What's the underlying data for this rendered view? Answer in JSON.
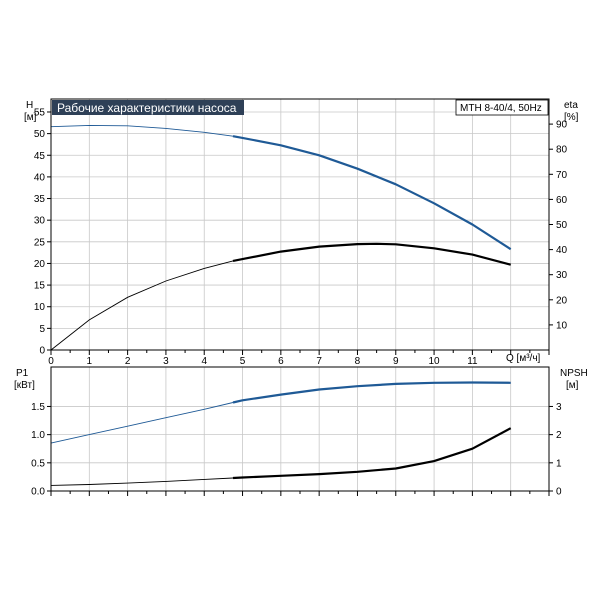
{
  "chart_data": [
    {
      "type": "line",
      "title": "Рабочие характеристики насоса",
      "model_label": "MTH 8-40/4, 50Hz",
      "xlabel": "Q [м³/ч]",
      "ylabel_left": "H",
      "ylabel_left_unit": "[м]",
      "ylabel_right": "eta",
      "ylabel_right_unit": "[%]",
      "xlim": [
        0,
        13
      ],
      "ylim_left": [
        0,
        58
      ],
      "ylim_right": [
        0,
        100
      ],
      "x_ticks": [
        "0",
        "1",
        "2",
        "3",
        "4",
        "5",
        "6",
        "7",
        "8",
        "9",
        "10",
        "11"
      ],
      "y_ticks_left": [
        "0",
        "5",
        "10",
        "15",
        "20",
        "25",
        "30",
        "35",
        "40",
        "45",
        "50",
        "55"
      ],
      "y_ticks_right": [
        "10",
        "20",
        "30",
        "40",
        "50",
        "60",
        "70",
        "80",
        "90"
      ],
      "grid": true,
      "series": [
        {
          "axis": "left",
          "color": "#1f5a96",
          "x": [
            0,
            1,
            2,
            3,
            4,
            4.75,
            5,
            6,
            7,
            8,
            9,
            10,
            11,
            12
          ],
          "y": [
            51.6,
            51.9,
            51.8,
            51.2,
            50.3,
            49.4,
            49.0,
            47.3,
            45.0,
            41.9,
            38.3,
            33.9,
            29.0,
            23.3
          ]
        },
        {
          "axis": "right",
          "color": "#000000",
          "x": [
            0,
            1,
            2,
            3,
            4,
            4.75,
            5,
            6,
            7,
            8,
            8.5,
            9,
            10,
            11,
            12
          ],
          "y": [
            0,
            12,
            21,
            27.5,
            32.5,
            35.5,
            36.2,
            39.2,
            41.2,
            42.2,
            42.3,
            42.1,
            40.5,
            38.0,
            34.0
          ]
        }
      ]
    },
    {
      "type": "line",
      "xlim": [
        0,
        13
      ],
      "ylabel_left": "P1",
      "ylabel_left_unit": "[кВт]",
      "ylabel_right": "NPSH",
      "ylabel_right_unit": "[м]",
      "ylim_left": [
        0,
        2.2
      ],
      "ylim_right": [
        0,
        4.4
      ],
      "y_ticks_left": [
        "0.0",
        "0.5",
        "1.0",
        "1.5"
      ],
      "y_ticks_right": [
        "0",
        "1",
        "2",
        "3"
      ],
      "grid": true,
      "series": [
        {
          "axis": "left",
          "color": "#1f5a96",
          "x": [
            0,
            1,
            2,
            3,
            4,
            4.75,
            5,
            6,
            7,
            8,
            9,
            10,
            11,
            12
          ],
          "y": [
            0.85,
            1.0,
            1.15,
            1.3,
            1.45,
            1.57,
            1.61,
            1.71,
            1.8,
            1.86,
            1.9,
            1.92,
            1.925,
            1.92
          ]
        },
        {
          "axis": "right",
          "color": "#000000",
          "x": [
            0,
            1,
            2,
            3,
            4,
            4.75,
            5,
            6,
            7,
            8,
            9,
            10,
            11,
            12
          ],
          "y": [
            0.2,
            0.23,
            0.28,
            0.34,
            0.41,
            0.46,
            0.48,
            0.54,
            0.6,
            0.68,
            0.8,
            1.06,
            1.5,
            2.23
          ]
        }
      ]
    }
  ]
}
